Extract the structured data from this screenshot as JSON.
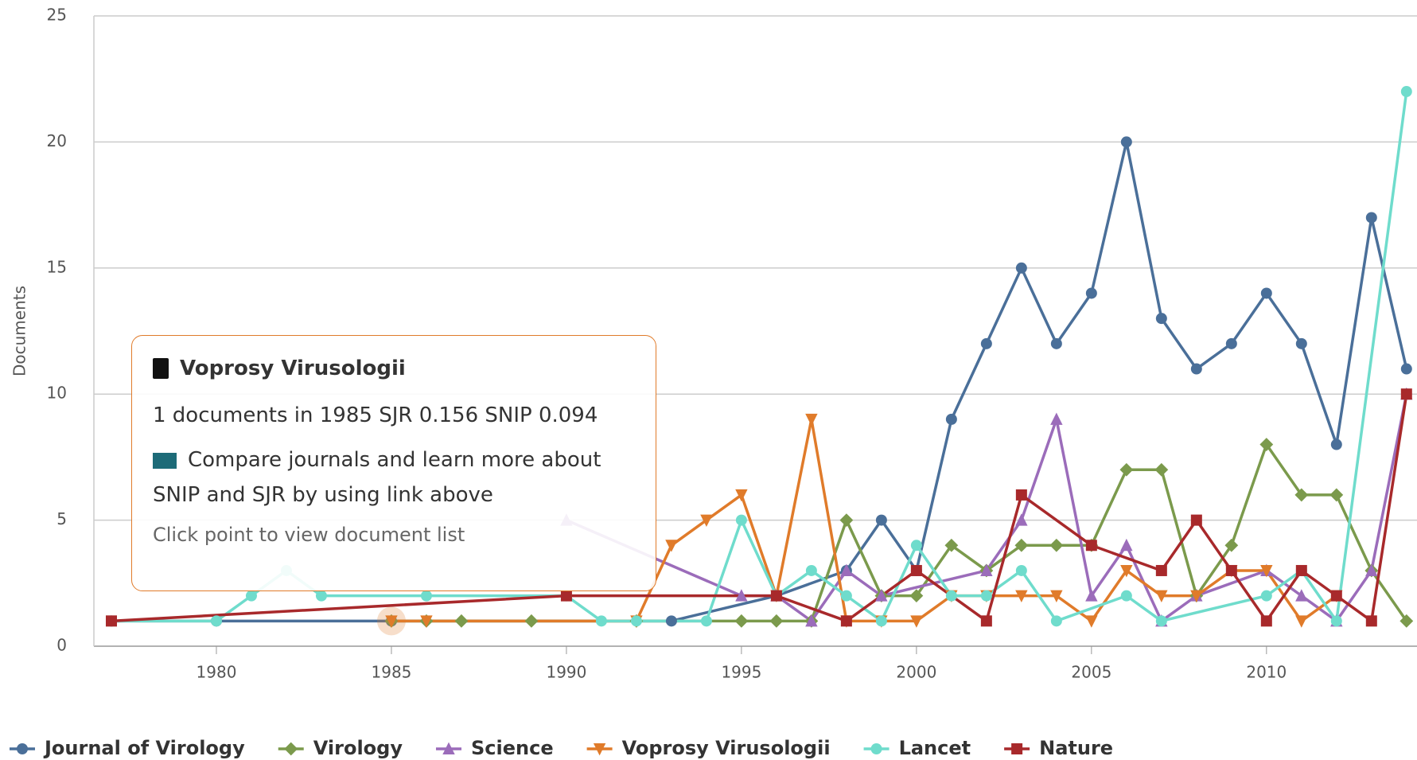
{
  "chart_data": {
    "type": "line",
    "y_label": "Documents",
    "xlim": [
      1976.5,
      2014.3
    ],
    "xticks": [
      1980,
      1985,
      1990,
      1995,
      2000,
      2005,
      2010
    ],
    "ylim": [
      0,
      25
    ],
    "yticks": [
      0,
      5,
      10,
      15,
      20,
      25
    ],
    "grid": true,
    "legend": "bottom",
    "series": [
      {
        "name": "Journal of Virology",
        "color": "#4a6f99",
        "marker": "circle",
        "x": [
          1977,
          1980,
          1985,
          1993,
          1996,
          1998,
          1999,
          2000,
          2001,
          2002,
          2003,
          2004,
          2005,
          2006,
          2007,
          2008,
          2009,
          2010,
          2011,
          2012,
          2013,
          2014
        ],
        "values": [
          1,
          1,
          1,
          1,
          2,
          3,
          5,
          3,
          9,
          12,
          15,
          12,
          14,
          20,
          13,
          11,
          12,
          14,
          12,
          8,
          17,
          11
        ]
      },
      {
        "name": "Virology",
        "color": "#7b9a4c",
        "marker": "diamond",
        "x": [
          1985,
          1986,
          1987,
          1989,
          1992,
          1995,
          1996,
          1997,
          1998,
          1999,
          2000,
          2001,
          2002,
          2003,
          2004,
          2005,
          2006,
          2007,
          2008,
          2009,
          2010,
          2011,
          2012,
          2013,
          2014
        ],
        "values": [
          1,
          1,
          1,
          1,
          1,
          1,
          1,
          1,
          5,
          2,
          2,
          4,
          3,
          4,
          4,
          4,
          7,
          7,
          2,
          4,
          8,
          6,
          6,
          3,
          1
        ]
      },
      {
        "name": "Science",
        "color": "#9b6cba",
        "marker": "triangle",
        "x": [
          1990,
          1995,
          1996,
          1997,
          1998,
          1999,
          2002,
          2003,
          2004,
          2005,
          2006,
          2007,
          2008,
          2010,
          2011,
          2012,
          2013,
          2014
        ],
        "values": [
          5,
          2,
          2,
          1,
          3,
          2,
          3,
          5,
          9,
          2,
          4,
          1,
          2,
          3,
          2,
          1,
          3,
          10
        ]
      },
      {
        "name": "Voprosy Virusologii",
        "color": "#e07b2a",
        "marker": "triangle-down",
        "x": [
          1985,
          1986,
          1992,
          1993,
          1994,
          1995,
          1996,
          1997,
          1998,
          1999,
          2000,
          2001,
          2002,
          2003,
          2004,
          2005,
          2006,
          2007,
          2008,
          2009,
          2010,
          2011,
          2012
        ],
        "values": [
          1,
          1,
          1,
          4,
          5,
          6,
          2,
          9,
          1,
          1,
          1,
          2,
          2,
          2,
          2,
          1,
          3,
          2,
          2,
          3,
          3,
          1,
          2
        ]
      },
      {
        "name": "Lancet",
        "color": "#6fdccc",
        "marker": "circle",
        "x": [
          1977,
          1980,
          1981,
          1982,
          1983,
          1986,
          1990,
          1991,
          1992,
          1994,
          1995,
          1996,
          1997,
          1998,
          1999,
          2000,
          2001,
          2002,
          2003,
          2004,
          2006,
          2007,
          2010,
          2011,
          2012,
          2014
        ],
        "values": [
          1,
          1,
          2,
          3,
          2,
          2,
          2,
          1,
          1,
          1,
          5,
          2,
          3,
          2,
          1,
          4,
          2,
          2,
          3,
          1,
          2,
          1,
          2,
          3,
          1,
          22
        ]
      },
      {
        "name": "Nature",
        "color": "#a8292b",
        "marker": "square",
        "x": [
          1977,
          1990,
          1996,
          1998,
          2000,
          2002,
          2003,
          2005,
          2007,
          2008,
          2009,
          2010,
          2011,
          2012,
          2013,
          2014
        ],
        "values": [
          1,
          2,
          2,
          1,
          3,
          1,
          6,
          4,
          3,
          5,
          3,
          1,
          3,
          2,
          1,
          10
        ]
      }
    ]
  },
  "tooltip": {
    "title": "Voprosy Virusologii",
    "text": "1 documents in 1985 SJR 0.156 SNIP 0.094",
    "note": "Compare journals and learn more about SNIP and SJR by using link above",
    "footer": "Click point to view document list"
  }
}
